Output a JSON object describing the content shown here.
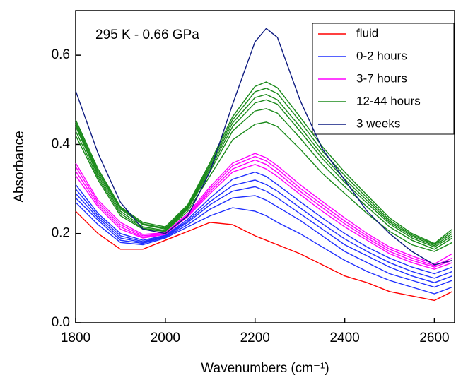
{
  "chart_data": {
    "type": "line",
    "annotation": "295 K - 0.66 GPa",
    "x_label": "Wavenumbers (cm⁻¹)",
    "y_label": "Absorbance",
    "xlim": [
      1800,
      2645
    ],
    "ylim": [
      0,
      0.7
    ],
    "xticks": [
      1800,
      2000,
      2200,
      2400,
      2600
    ],
    "yticks": [
      {
        "value": 0,
        "label": "0.0"
      },
      0.2,
      0.4,
      0.6
    ],
    "legend": "top-right",
    "x": [
      1800,
      1850,
      1900,
      1950,
      2000,
      2050,
      2100,
      2150,
      2200,
      2225,
      2250,
      2300,
      2350,
      2400,
      2450,
      2500,
      2550,
      2600,
      2640
    ],
    "series": [
      {
        "name": "fluid",
        "color": "#ff0000",
        "curves": [
          [
            0.25,
            0.2,
            0.165,
            0.165,
            0.185,
            0.205,
            0.225,
            0.22,
            0.195,
            0.185,
            0.175,
            0.155,
            0.13,
            0.105,
            0.09,
            0.07,
            0.06,
            0.05,
            0.07
          ]
        ]
      },
      {
        "name": "0-2 hours",
        "color": "#1f2fff",
        "curves": [
          [
            0.27,
            0.22,
            0.18,
            0.175,
            0.19,
            0.215,
            0.24,
            0.258,
            0.25,
            0.24,
            0.225,
            0.2,
            0.17,
            0.14,
            0.115,
            0.095,
            0.08,
            0.065,
            0.08
          ],
          [
            0.28,
            0.23,
            0.185,
            0.178,
            0.192,
            0.22,
            0.255,
            0.28,
            0.285,
            0.275,
            0.26,
            0.23,
            0.195,
            0.16,
            0.135,
            0.11,
            0.095,
            0.08,
            0.095
          ],
          [
            0.29,
            0.235,
            0.19,
            0.18,
            0.193,
            0.225,
            0.265,
            0.295,
            0.305,
            0.295,
            0.28,
            0.245,
            0.21,
            0.175,
            0.15,
            0.125,
            0.105,
            0.09,
            0.105
          ],
          [
            0.3,
            0.24,
            0.195,
            0.182,
            0.195,
            0.228,
            0.272,
            0.308,
            0.32,
            0.31,
            0.295,
            0.258,
            0.222,
            0.188,
            0.16,
            0.135,
            0.115,
            0.1,
            0.115
          ],
          [
            0.31,
            0.245,
            0.2,
            0.185,
            0.196,
            0.232,
            0.28,
            0.322,
            0.338,
            0.328,
            0.31,
            0.272,
            0.235,
            0.2,
            0.17,
            0.145,
            0.125,
            0.11,
            0.125
          ]
        ]
      },
      {
        "name": "3-7 hours",
        "color": "#ff00ff",
        "curves": [
          [
            0.33,
            0.26,
            0.21,
            0.19,
            0.198,
            0.238,
            0.29,
            0.338,
            0.355,
            0.345,
            0.328,
            0.288,
            0.25,
            0.215,
            0.185,
            0.155,
            0.135,
            0.12,
            0.135
          ],
          [
            0.34,
            0.265,
            0.215,
            0.192,
            0.2,
            0.24,
            0.295,
            0.345,
            0.365,
            0.355,
            0.337,
            0.295,
            0.258,
            0.222,
            0.19,
            0.16,
            0.14,
            0.125,
            0.14
          ],
          [
            0.35,
            0.27,
            0.22,
            0.195,
            0.2,
            0.242,
            0.3,
            0.352,
            0.373,
            0.363,
            0.345,
            0.302,
            0.265,
            0.228,
            0.195,
            0.165,
            0.145,
            0.128,
            0.145
          ],
          [
            0.358,
            0.275,
            0.225,
            0.198,
            0.202,
            0.245,
            0.305,
            0.358,
            0.38,
            0.37,
            0.352,
            0.31,
            0.272,
            0.235,
            0.2,
            0.17,
            0.15,
            0.132,
            0.155
          ]
        ]
      },
      {
        "name": "12-44 hours",
        "color": "#1a8a1a",
        "curves": [
          [
            0.42,
            0.32,
            0.24,
            0.21,
            0.205,
            0.25,
            0.33,
            0.41,
            0.445,
            0.45,
            0.44,
            0.39,
            0.335,
            0.29,
            0.245,
            0.205,
            0.175,
            0.16,
            0.18
          ],
          [
            0.43,
            0.325,
            0.245,
            0.212,
            0.205,
            0.255,
            0.34,
            0.43,
            0.475,
            0.48,
            0.47,
            0.415,
            0.355,
            0.305,
            0.26,
            0.215,
            0.185,
            0.165,
            0.19
          ],
          [
            0.44,
            0.33,
            0.25,
            0.215,
            0.207,
            0.258,
            0.345,
            0.44,
            0.493,
            0.5,
            0.49,
            0.43,
            0.368,
            0.315,
            0.268,
            0.222,
            0.19,
            0.17,
            0.195
          ],
          [
            0.445,
            0.335,
            0.255,
            0.22,
            0.21,
            0.26,
            0.35,
            0.448,
            0.505,
            0.512,
            0.5,
            0.44,
            0.376,
            0.322,
            0.274,
            0.226,
            0.194,
            0.173,
            0.2
          ],
          [
            0.45,
            0.34,
            0.258,
            0.222,
            0.212,
            0.262,
            0.355,
            0.455,
            0.518,
            0.526,
            0.514,
            0.452,
            0.385,
            0.33,
            0.28,
            0.23,
            0.197,
            0.176,
            0.205
          ],
          [
            0.455,
            0.345,
            0.26,
            0.225,
            0.215,
            0.265,
            0.36,
            0.462,
            0.53,
            0.54,
            0.527,
            0.462,
            0.395,
            0.338,
            0.286,
            0.235,
            0.2,
            0.178,
            0.21
          ]
        ]
      },
      {
        "name": "3 weeks",
        "color": "#0d1a80",
        "curves": [
          [
            0.52,
            0.38,
            0.27,
            0.21,
            0.2,
            0.24,
            0.34,
            0.49,
            0.63,
            0.66,
            0.64,
            0.5,
            0.39,
            0.32,
            0.25,
            0.2,
            0.16,
            0.13,
            0.14
          ]
        ]
      }
    ]
  }
}
